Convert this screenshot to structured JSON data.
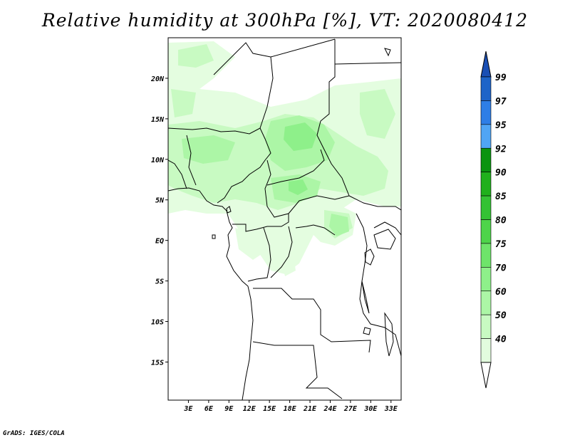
{
  "title": "Relative humidity at 300hPa [%], VT: 2020080412",
  "credit": "GrADS: IGES/COLA",
  "map": {
    "lat_ticks": [
      "20N",
      "15N",
      "10N",
      "5N",
      "EQ",
      "5S",
      "10S",
      "15S"
    ],
    "lat_values": [
      20,
      15,
      10,
      5,
      0,
      -5,
      -10,
      -15
    ],
    "lon_ticks": [
      "3E",
      "6E",
      "9E",
      "12E",
      "15E",
      "18E",
      "21E",
      "24E",
      "27E",
      "30E",
      "33E"
    ],
    "lon_values": [
      3,
      6,
      9,
      12,
      15,
      18,
      21,
      24,
      27,
      30,
      33
    ],
    "lon_range": [
      0,
      34.5
    ],
    "lat_range": [
      -19.7,
      25
    ],
    "projection": "lat-lon",
    "humidity_regions_note_levels": [
      40,
      50,
      60,
      70,
      75
    ]
  },
  "colorbar": {
    "labels": [
      "99",
      "97",
      "95",
      "92",
      "90",
      "85",
      "80",
      "75",
      "70",
      "60",
      "50",
      "40"
    ],
    "colors": [
      "#1e64c8",
      "#2e7ee6",
      "#50a5f5",
      "#0a9410",
      "#20b01c",
      "#34c234",
      "#4ed44a",
      "#6ee46a",
      "#8ef08a",
      "#acf6a6",
      "#c8fac2",
      "#e2fcde"
    ],
    "top_triangle_color": "#1a4fb4",
    "bottom_triangle_color": "#ffffff"
  },
  "colors": {
    "background": "#ffffff",
    "outline": "#000000"
  }
}
